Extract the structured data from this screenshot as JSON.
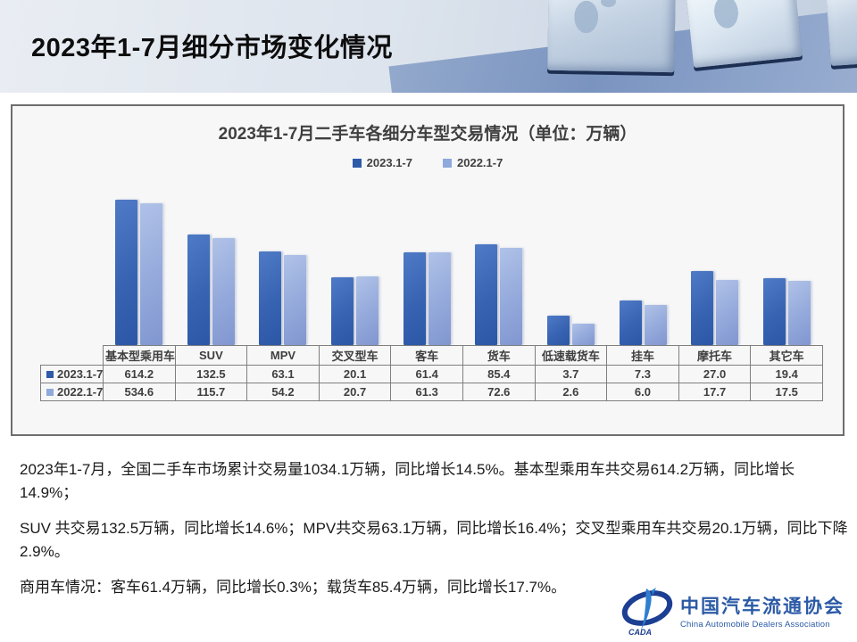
{
  "page_title": "2023年1-7月细分市场变化情况",
  "chart": {
    "title": "2023年1-7月二手车各细分车型交易情况（单位：万辆）"
  },
  "chart_data": {
    "type": "bar",
    "title": "2023年1-7月二手车各细分车型交易情况（单位：万辆）",
    "categories": [
      "基本型乘用车",
      "SUV",
      "MPV",
      "交叉型车",
      "客车",
      "货车",
      "低速载货车",
      "挂车",
      "摩托车",
      "其它车"
    ],
    "series": [
      {
        "name": "2023.1-7",
        "color": "#2e5aa8",
        "values": [
          614.2,
          132.5,
          63.1,
          20.1,
          61.4,
          85.4,
          3.7,
          7.3,
          27.0,
          19.4
        ]
      },
      {
        "name": "2022.1-7",
        "color": "#8ea9db",
        "values": [
          534.6,
          115.7,
          54.2,
          20.7,
          61.3,
          72.6,
          2.6,
          6.0,
          17.7,
          17.5
        ]
      }
    ],
    "ylabel": "",
    "xlabel": "",
    "yscale": "log",
    "ylim": [
      1,
      1000
    ],
    "grid": false,
    "legend_position": "top",
    "data_table_shown": true
  },
  "body_paragraphs": [
    "2023年1-7月，全国二手车市场累计交易量1034.1万辆，同比增长14.5%。基本型乘用车共交易614.2万辆，同比增长14.9%；",
    "SUV 共交易132.5万辆，同比增长14.6%；MPV共交易63.1万辆，同比增长16.4%；交叉型乘用车共交易20.1万辆，同比下降2.9%。",
    "商用车情况：客车61.4万辆，同比增长0.3%；载货车85.4万辆，同比增长17.7%。"
  ],
  "logo": {
    "cn_name": "中国汽车流通协会",
    "en_name": "China Automobile Dealers Association",
    "emblem_label": "CADA"
  },
  "colors": {
    "series_2023": "#2e5aa8",
    "series_2022": "#8ea9db",
    "logo_blue": "#2b5aa6",
    "panel_border": "#6e6e6e"
  }
}
